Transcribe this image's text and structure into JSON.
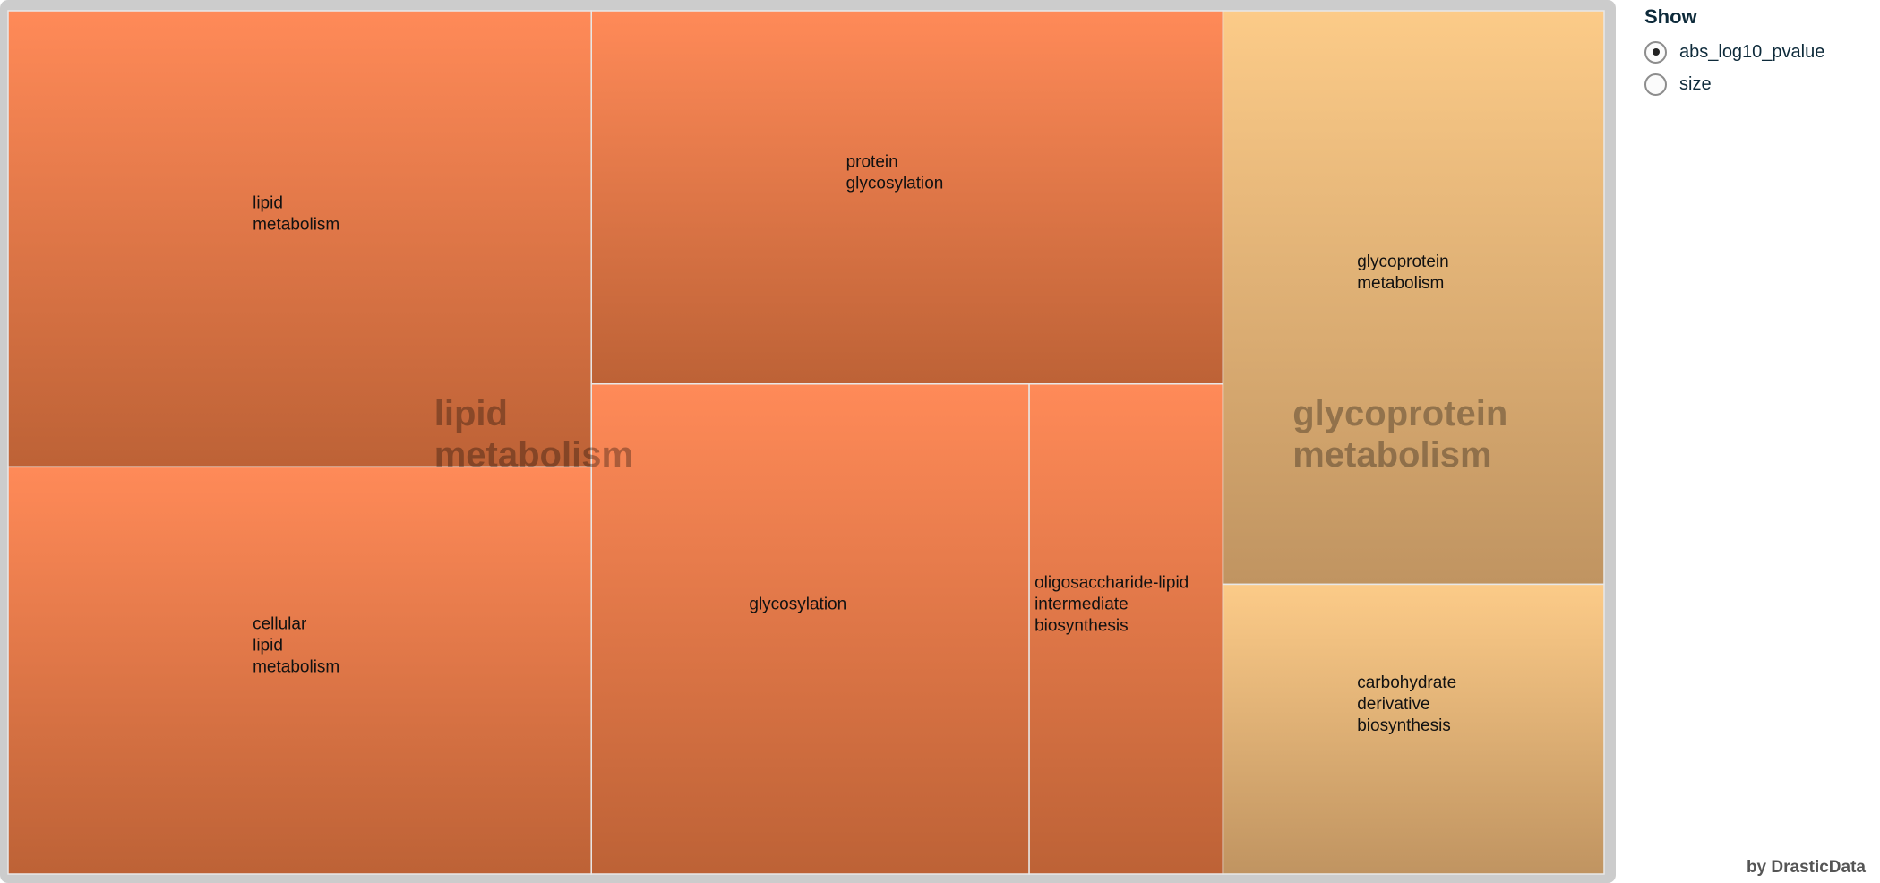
{
  "chart_data": {
    "type": "treemap",
    "colors": {
      "low_top": "#fccb88",
      "low_bottom": "#c09461",
      "high_top": "#ff8a58",
      "high_bottom": "#bd6236"
    },
    "groups": [
      {
        "name": "lipid metabolism",
        "children": [
          {
            "name": "lipid metabolism",
            "size": 46.5,
            "color_key": "high"
          },
          {
            "name": "cellular lipid metabolism",
            "size": 41.5,
            "color_key": "high"
          }
        ]
      },
      {
        "name": "lipid metabolism",
        "children": [
          {
            "name": "protein glycosylation",
            "size": 41.2,
            "color_key": "high"
          },
          {
            "name": "glycosylation",
            "size": 37.5,
            "color_key": "high"
          },
          {
            "name": "oligosaccharide-lipid intermediate biosynthesis",
            "size": 16.6,
            "color_key": "high"
          }
        ]
      },
      {
        "name": "glycoprotein metabolism",
        "children": [
          {
            "name": "glycoprotein metabolism",
            "size": 38.2,
            "color_key": "low"
          },
          {
            "name": "carbohydrate derivative biosynthesis",
            "size": 19.3,
            "color_key": "low"
          }
        ]
      }
    ]
  },
  "controls": {
    "title": "Show",
    "options": [
      {
        "label": "abs_log10_pvalue",
        "selected": true
      },
      {
        "label": "size",
        "selected": false
      }
    ]
  },
  "credit": "by DrasticData"
}
